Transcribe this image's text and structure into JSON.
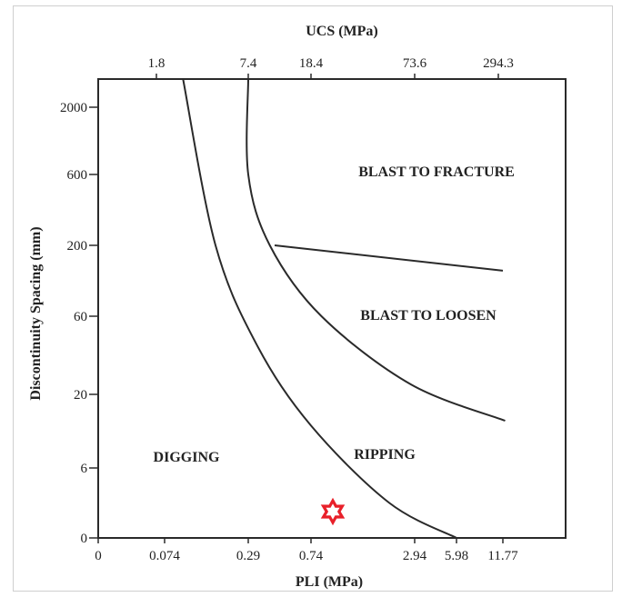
{
  "chart_data": {
    "type": "line",
    "title": "",
    "xlabel": "PLI (MPa)",
    "x2label": "UCS (MPa)",
    "ylabel": "Discontinuity Spacing (mm)",
    "x_ticks": [
      "0",
      "0.074",
      "0.29",
      "0.74",
      "2.94",
      "5.98",
      "11.77"
    ],
    "x2_ticks": [
      "1.8",
      "7.4",
      "18.4",
      "73.6",
      "294.3"
    ],
    "y_ticks": [
      "0",
      "6",
      "20",
      "60",
      "200",
      "600",
      "2000"
    ],
    "regions": [
      {
        "name": "BLAST TO FRACTURE"
      },
      {
        "name": "BLAST TO LOOSEN"
      },
      {
        "name": "DIGGING"
      },
      {
        "name": "RIPPING"
      }
    ],
    "boundaries": [
      {
        "name": "digging-ripping",
        "points": [
          [
            0.1,
            3000
          ],
          [
            0.17,
            200
          ],
          [
            0.33,
            40
          ],
          [
            0.74,
            12
          ],
          [
            2.1,
            3
          ],
          [
            5.98,
            0
          ]
        ]
      },
      {
        "name": "ripping-blasting",
        "points": [
          [
            0.29,
            3000
          ],
          [
            0.29,
            600
          ],
          [
            0.4,
            200
          ],
          [
            0.85,
            60
          ],
          [
            2.8,
            23
          ],
          [
            12.0,
            13
          ]
        ]
      },
      {
        "name": "loosen-fracture",
        "points": [
          [
            0.43,
            200
          ],
          [
            11.77,
            130
          ]
        ]
      }
    ],
    "marker": {
      "shape": "six-pointed star",
      "color": "#e8202a"
    },
    "grid": false,
    "legend": "none"
  }
}
